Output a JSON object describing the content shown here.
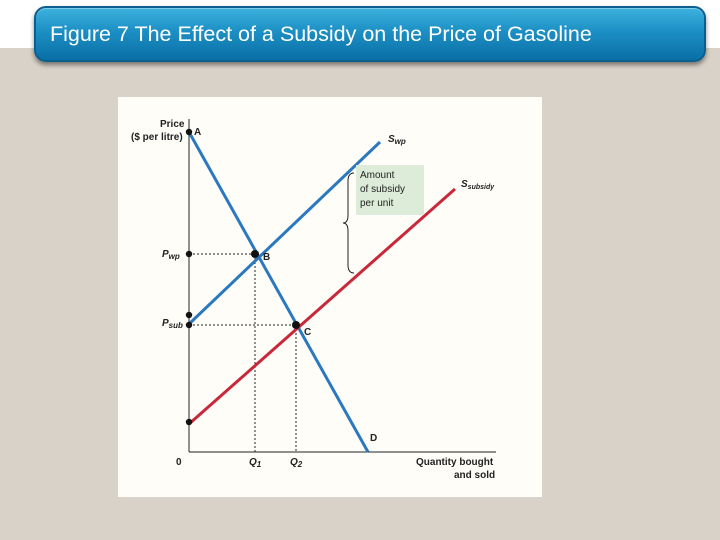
{
  "slide": {
    "title": "Figure 7 The Effect of a Subsidy on the Price of Gasoline"
  },
  "diagram": {
    "y_axis_label_line1": "Price",
    "y_axis_label_line2": "($ per litre)",
    "x_axis_label_line1": "Quantity bought",
    "x_axis_label_line2": "and sold",
    "origin_label": "0",
    "point_labels": {
      "A": "A",
      "B": "B",
      "C": "C",
      "D": "D"
    },
    "price_labels": {
      "p_wp_base": "P",
      "p_wp_sub": "wp",
      "p_sub_base": "P",
      "p_sub_sub": "sub"
    },
    "quantity_labels": {
      "q1_base": "Q",
      "q1_sub": "1",
      "q2_base": "Q",
      "q2_sub": "2"
    },
    "curve_labels": {
      "s_wp_base": "S",
      "s_wp_sub": "wp",
      "s_subsidy_base": "S",
      "s_subsidy_sub": "subsidy"
    },
    "annotation": {
      "line1": "Amount",
      "line2": "of subsidy",
      "line3": "per unit"
    },
    "colors": {
      "demand": "#2a79c0",
      "supply_wp": "#2a79c0",
      "supply_subsidy": "#c8283a",
      "annotation_bg": "#dcecd8"
    }
  }
}
